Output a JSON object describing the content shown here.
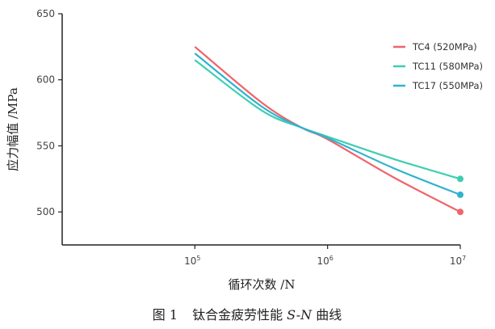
{
  "chart_data": {
    "type": "line",
    "title": "",
    "xlabel": "循环次数 /N",
    "ylabel": "应力幅值 /MPa",
    "xscale": "log",
    "xlim": [
      10000,
      10000000
    ],
    "ylim": [
      475,
      650
    ],
    "xticks": [
      {
        "value": 100000,
        "base": "10",
        "exp": "5"
      },
      {
        "value": 1000000,
        "base": "10",
        "exp": "6"
      },
      {
        "value": 10000000,
        "base": "10",
        "exp": "7"
      }
    ],
    "yticks": [
      {
        "value": 500,
        "label": "500"
      },
      {
        "value": 550,
        "label": "550"
      },
      {
        "value": 600,
        "label": "600"
      },
      {
        "value": 650,
        "label": "650"
      }
    ],
    "grid": false,
    "legend_position": "top-right",
    "series": [
      {
        "name": "TC4 (520MPa)",
        "color": "#f0646a",
        "x": [
          100000,
          316228,
          630000,
          1000000,
          3162278,
          10000000
        ],
        "y": [
          625,
          583,
          564,
          555,
          526,
          500
        ],
        "end_marker": true
      },
      {
        "name": "TC11 (580MPa)",
        "color": "#3fcdb0",
        "x": [
          100000,
          316228,
          630000,
          1000000,
          3162278,
          10000000
        ],
        "y": [
          615,
          577,
          564,
          557,
          540,
          525
        ],
        "end_marker": true
      },
      {
        "name": "TC17 (550MPa)",
        "color": "#2fb3cf",
        "x": [
          100000,
          316228,
          630000,
          1000000,
          3162278,
          10000000
        ],
        "y": [
          620,
          580,
          564,
          556,
          533,
          513
        ],
        "end_marker": true
      }
    ]
  },
  "caption": {
    "prefix": "图 1",
    "text": "钛合金疲劳性能 ",
    "italic": "S-N",
    "suffix": " 曲线"
  }
}
